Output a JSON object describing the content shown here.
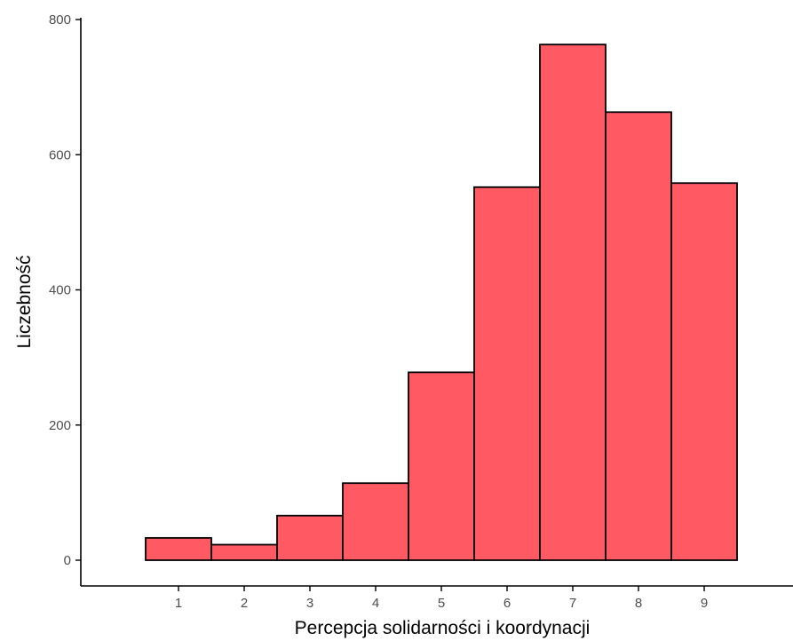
{
  "chart_data": {
    "type": "bar",
    "title": "",
    "xlabel": "Percepcja solidarności i koordynacji",
    "ylabel": "Liczebność",
    "x": [
      1,
      2,
      3,
      4,
      5,
      6,
      7,
      8,
      9
    ],
    "values": [
      33,
      23,
      66,
      114,
      278,
      552,
      763,
      663,
      558
    ],
    "xlim": [
      0,
      9.95
    ],
    "ylim": [
      -20,
      800
    ],
    "x_ticks": [
      "1",
      "2",
      "3",
      "4",
      "5",
      "6",
      "7",
      "8",
      "9"
    ],
    "y_ticks": [
      "0",
      "200",
      "400",
      "600",
      "800"
    ],
    "grid": false,
    "legend": "none",
    "colors": {
      "bar_fill": "#FF5A63",
      "bar_stroke": "#000000",
      "axis": "#000000",
      "tick_label": "#4d4d4d"
    }
  }
}
